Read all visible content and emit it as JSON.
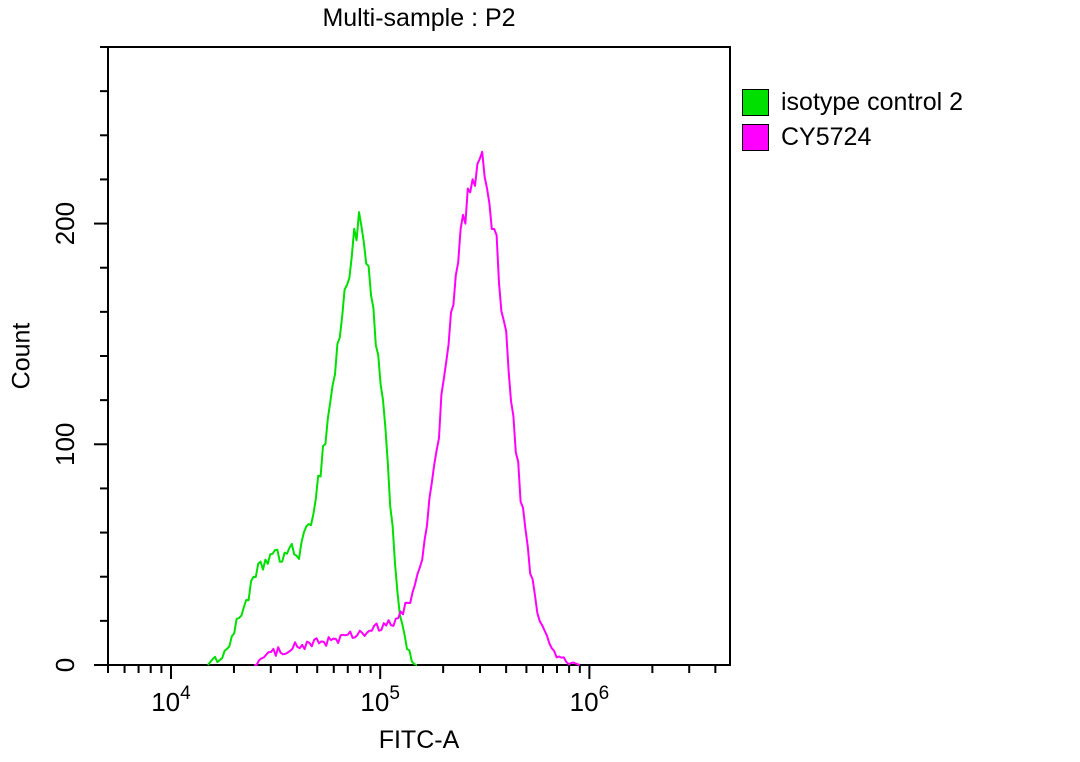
{
  "chart_data": {
    "type": "line",
    "chart_style": "flow-cytometry-histogram",
    "title": "Multi-sample : P2",
    "xlabel": "FITC-A",
    "ylabel": "Count",
    "x_axis": {
      "scale": "log",
      "domain": [
        5000,
        4700000
      ],
      "major_ticks": [
        {
          "base": "10",
          "exp": "4",
          "value": 10000
        },
        {
          "base": "10",
          "exp": "5",
          "value": 100000
        },
        {
          "base": "10",
          "exp": "6",
          "value": 1000000
        }
      ]
    },
    "y_axis": {
      "scale": "linear",
      "domain": [
        0,
        280
      ],
      "major_ticks": [
        0,
        100,
        200
      ],
      "major_step": 100,
      "minor_step": 20
    },
    "legend": {
      "position": "top-right"
    },
    "frame_color": "#000000",
    "series": [
      {
        "name": "isotype control 2",
        "color": "#00e000",
        "points": [
          [
            15000,
            0
          ],
          [
            18000,
            5
          ],
          [
            20000,
            15
          ],
          [
            23000,
            30
          ],
          [
            26000,
            42
          ],
          [
            30000,
            50
          ],
          [
            33000,
            48
          ],
          [
            36000,
            52
          ],
          [
            40000,
            50
          ],
          [
            45000,
            60
          ],
          [
            50000,
            80
          ],
          [
            55000,
            105
          ],
          [
            60000,
            130
          ],
          [
            65000,
            155
          ],
          [
            70000,
            175
          ],
          [
            75000,
            195
          ],
          [
            80000,
            200
          ],
          [
            85000,
            185
          ],
          [
            90000,
            168
          ],
          [
            95000,
            150
          ],
          [
            100000,
            128
          ],
          [
            108000,
            95
          ],
          [
            115000,
            60
          ],
          [
            122000,
            30
          ],
          [
            130000,
            12
          ],
          [
            140000,
            3
          ],
          [
            150000,
            0
          ]
        ]
      },
      {
        "name": "CY5724",
        "color": "#ff00ff",
        "points": [
          [
            25000,
            0
          ],
          [
            28000,
            4
          ],
          [
            32000,
            6
          ],
          [
            38000,
            8
          ],
          [
            45000,
            9
          ],
          [
            55000,
            11
          ],
          [
            65000,
            12
          ],
          [
            80000,
            14
          ],
          [
            95000,
            16
          ],
          [
            110000,
            18
          ],
          [
            125000,
            22
          ],
          [
            140000,
            30
          ],
          [
            155000,
            45
          ],
          [
            170000,
            68
          ],
          [
            185000,
            95
          ],
          [
            200000,
            125
          ],
          [
            215000,
            150
          ],
          [
            230000,
            175
          ],
          [
            245000,
            195
          ],
          [
            260000,
            210
          ],
          [
            280000,
            222
          ],
          [
            300000,
            230
          ],
          [
            320000,
            218
          ],
          [
            340000,
            205
          ],
          [
            360000,
            192
          ],
          [
            380000,
            165
          ],
          [
            400000,
            148
          ],
          [
            430000,
            112
          ],
          [
            460000,
            85
          ],
          [
            500000,
            55
          ],
          [
            550000,
            30
          ],
          [
            600000,
            16
          ],
          [
            650000,
            8
          ],
          [
            700000,
            4
          ],
          [
            800000,
            1
          ],
          [
            900000,
            0
          ]
        ]
      }
    ]
  }
}
